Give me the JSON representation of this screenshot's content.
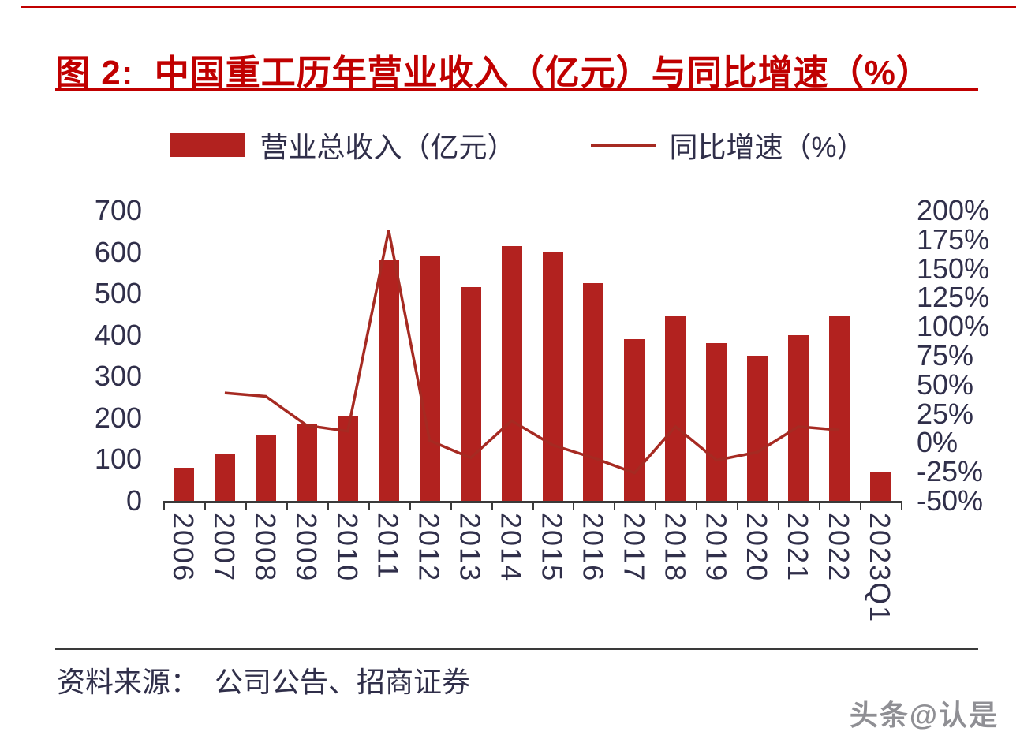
{
  "title": "图 2:  中国重工历年营业收入（亿元）与同比增速（%）",
  "legend": {
    "bar_label": "营业总收入（亿元）",
    "line_label": "同比增速（%）"
  },
  "source": "资料来源：  公司公告、招商证券",
  "watermark": "头条@认是",
  "colors": {
    "accent": "#C00000",
    "bar": "#B2221F",
    "line": "#A62A22",
    "ink": "#302F4A",
    "axis": "#3A3A3A",
    "watermark": "#8F8F94"
  },
  "chart_data": {
    "type": "bar",
    "combo": "bar+line, dual axis",
    "title": "中国重工历年营业收入（亿元）与同比增速（%）",
    "categories": [
      "2006",
      "2007",
      "2008",
      "2009",
      "2010",
      "2011",
      "2012",
      "2013",
      "2014",
      "2015",
      "2016",
      "2017",
      "2018",
      "2019",
      "2020",
      "2021",
      "2022",
      "2023Q1"
    ],
    "series": [
      {
        "name": "营业总收入（亿元）",
        "chart": "bar",
        "axis": "left",
        "values": [
          80,
          115,
          160,
          185,
          205,
          580,
          590,
          515,
          615,
          600,
          525,
          390,
          445,
          380,
          350,
          400,
          445,
          68
        ]
      },
      {
        "name": "同比增速（%）",
        "chart": "line",
        "axis": "right",
        "values": [
          null,
          43,
          40,
          15,
          10,
          183,
          2,
          -13,
          19,
          -2,
          -13,
          -26,
          14,
          -15,
          -8,
          14,
          11,
          null
        ]
      }
    ],
    "left_axis": {
      "min": 0,
      "max": 700,
      "tick_step": 100,
      "ticks": [
        "700",
        "600",
        "500",
        "400",
        "300",
        "200",
        "100",
        "0"
      ]
    },
    "right_axis": {
      "min": -50,
      "max": 200,
      "tick_step": 25,
      "ticks": [
        "200%",
        "175%",
        "150%",
        "125%",
        "100%",
        "75%",
        "50%",
        "25%",
        "0%",
        "-25%",
        "-50%"
      ]
    },
    "grid": false,
    "legend_position": "top-center"
  }
}
